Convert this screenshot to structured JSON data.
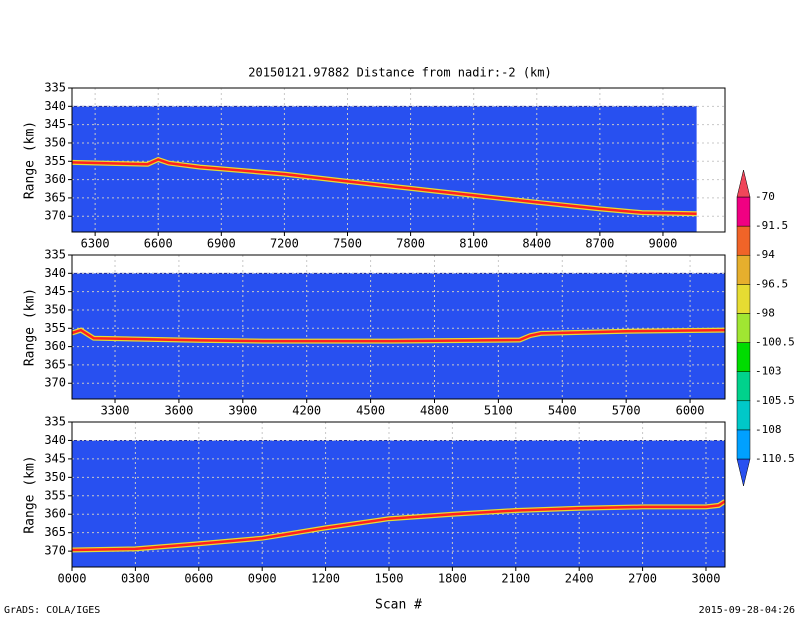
{
  "title": "20150121.97882    Distance from nadir:-2 (km)",
  "footer_left": "GrADS: COLA/IGES",
  "footer_right": "2015-09-28-04:26",
  "colorbar": {
    "levels": [
      -110.5,
      -108,
      -105.5,
      -103,
      -100.5,
      -98,
      -96.5,
      -94,
      -91.5,
      -70
    ],
    "colors": [
      "#2850f0",
      "#00a0ff",
      "#00c8c8",
      "#00d28c",
      "#00dc00",
      "#a0e632",
      "#e6dc32",
      "#e6af2d",
      "#f06428",
      "#f00082",
      "#f0465a"
    ]
  },
  "chart_data": [
    {
      "type": "line",
      "y_label": "Range (km)",
      "xlim": [
        6190,
        9295
      ],
      "ylim": [
        335,
        374.3
      ],
      "y_reversed": true,
      "grid": true,
      "echo_top": 340,
      "echo_x_end": 9160,
      "xticks": [
        6300,
        6600,
        6900,
        7200,
        7500,
        7800,
        8100,
        8400,
        8700,
        9000
      ],
      "yticks": [
        335,
        340,
        345,
        350,
        355,
        360,
        365,
        370
      ],
      "series": [
        {
          "color": "#ff2020",
          "x": [
            6190,
            6400,
            6550,
            6600,
            6650,
            6800,
            7200,
            7500,
            7800,
            8100,
            8400,
            8700,
            8900,
            9160
          ],
          "values": [
            355.3,
            355.6,
            355.8,
            354.5,
            355.5,
            356.6,
            358.5,
            360.5,
            362.4,
            364.3,
            366.2,
            368,
            369,
            369.3
          ]
        }
      ]
    },
    {
      "type": "line",
      "y_label": "Range (km)",
      "xlim": [
        3098,
        6164
      ],
      "ylim": [
        335,
        374.3
      ],
      "y_reversed": true,
      "grid": true,
      "echo_top": 340,
      "xticks": [
        3300,
        3600,
        3900,
        4200,
        4500,
        4800,
        5100,
        5400,
        5700,
        6000
      ],
      "yticks": [
        335,
        340,
        345,
        350,
        355,
        360,
        365,
        370
      ],
      "series": [
        {
          "color": "#ff2020",
          "x": [
            3098,
            3140,
            3200,
            3700,
            4000,
            4600,
            5200,
            5250,
            5300,
            5700,
            6164
          ],
          "values": [
            356.3,
            355.5,
            357.7,
            358.3,
            358.5,
            358.5,
            358.2,
            357,
            356.4,
            355.8,
            355.5
          ]
        }
      ]
    },
    {
      "type": "line",
      "y_label": "Range (km)",
      "x_label": "Scan #",
      "xlim": [
        0,
        3090
      ],
      "ylim": [
        335,
        374.3
      ],
      "y_reversed": true,
      "grid": true,
      "echo_top": 340,
      "xticks": [
        {
          "value": 0,
          "label": "0000"
        },
        {
          "value": 300,
          "label": "0300"
        },
        {
          "value": 600,
          "label": "0600"
        },
        {
          "value": 900,
          "label": "0900"
        },
        1200,
        1500,
        1800,
        2100,
        2400,
        2700,
        3000
      ],
      "yticks": [
        335,
        340,
        345,
        350,
        355,
        360,
        365,
        370
      ],
      "series": [
        {
          "color": "#ff2020",
          "x": [
            0,
            300,
            600,
            900,
            1200,
            1500,
            1800,
            2100,
            2400,
            2700,
            3000,
            3060,
            3090
          ],
          "values": [
            369.7,
            369.4,
            368,
            366.5,
            363.7,
            361.2,
            360,
            359,
            358.4,
            358,
            358,
            357.6,
            356.5
          ]
        }
      ]
    }
  ]
}
